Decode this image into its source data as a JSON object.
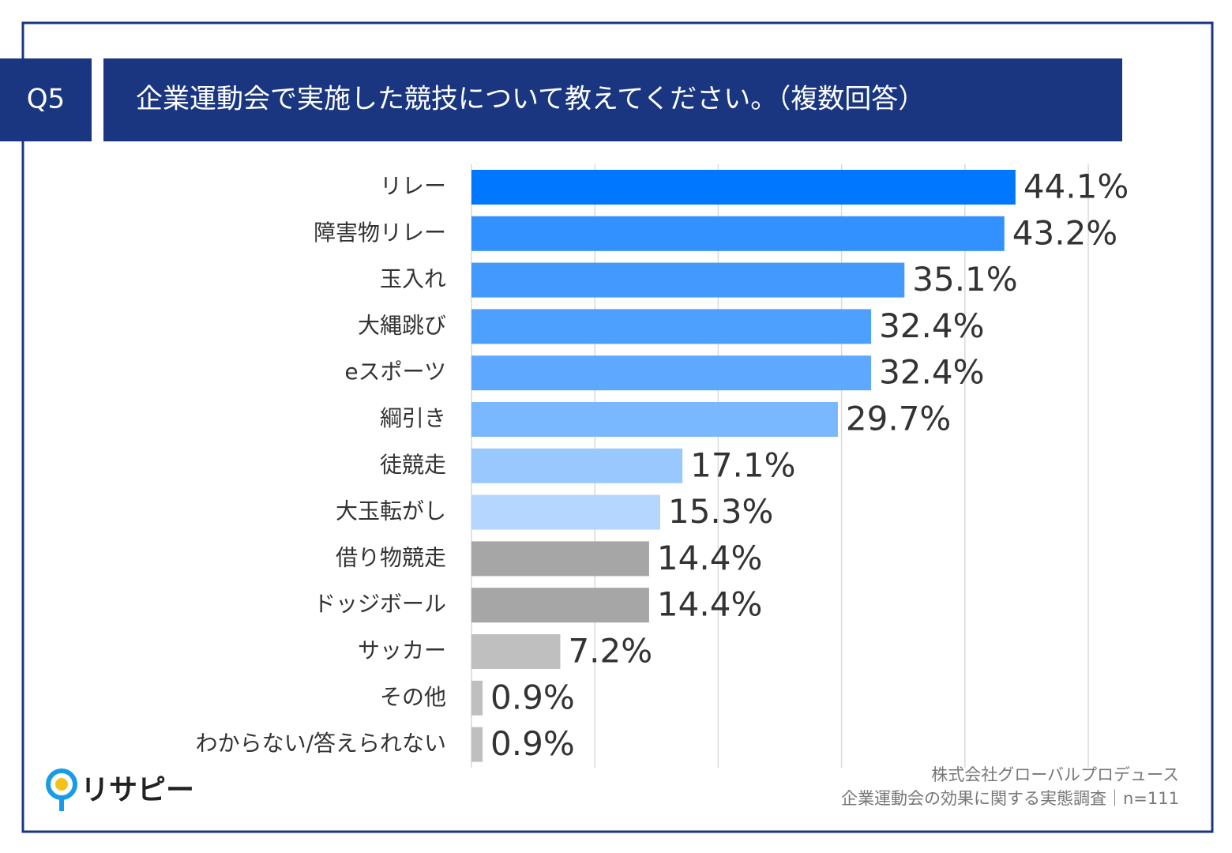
{
  "question": "Q5",
  "logo": "リサピー",
  "footer": {
    "company": "株式会社グローバルプロデュース",
    "survey": "企業運動会の効果に関する実態調査｜n=111"
  },
  "chart_data": {
    "type": "bar",
    "orientation": "horizontal",
    "title": "企業運動会で実施した競技について教えてください。（複数回答）",
    "categories": [
      "リレー",
      "障害物リレー",
      "玉入れ",
      "大縄跳び",
      "eスポーツ",
      "綱引き",
      "徒競走",
      "大玉転がし",
      "借り物競走",
      "ドッジボール",
      "サッカー",
      "その他",
      "わからない/答えられない"
    ],
    "values": [
      44.1,
      43.2,
      35.1,
      32.4,
      32.4,
      29.7,
      17.1,
      15.3,
      14.4,
      14.4,
      7.2,
      0.9,
      0.9
    ],
    "value_labels": [
      "44.1%",
      "43.2%",
      "35.1%",
      "32.4%",
      "32.4%",
      "29.7%",
      "17.1%",
      "15.3%",
      "14.4%",
      "14.4%",
      "7.2%",
      "0.9%",
      "0.9%"
    ],
    "colors": [
      "#0077ff",
      "#3391ff",
      "#4499ff",
      "#4ea0ff",
      "#5ea9ff",
      "#79b7ff",
      "#99c8ff",
      "#b5d7ff",
      "#a6a6a6",
      "#a6a6a6",
      "#bfbfbf",
      "#bfbfbf",
      "#bfbfbf"
    ],
    "xlim": [
      0,
      50
    ],
    "xticks": [
      0,
      10,
      20,
      30,
      40,
      50
    ],
    "grid": true
  }
}
